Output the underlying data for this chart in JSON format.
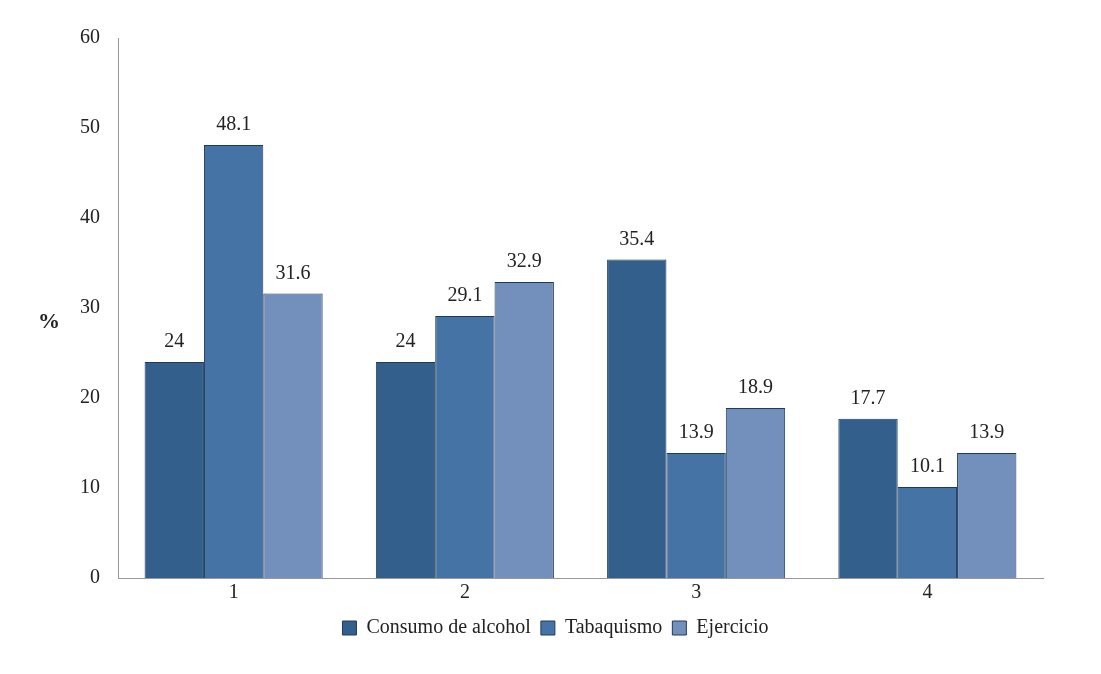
{
  "chart_data": {
    "type": "bar",
    "ylabel": "%",
    "categories": [
      "1",
      "2",
      "3",
      "4"
    ],
    "series": [
      {
        "name": "Consumo de alcohol",
        "color": "#335f8c",
        "values": [
          24,
          24,
          35.4,
          17.7
        ]
      },
      {
        "name": "Tabaquismo",
        "color": "#4573a6",
        "values": [
          48.1,
          29.1,
          13.9,
          10.1
        ]
      },
      {
        "name": "Ejercicio",
        "color": "#7390bd",
        "values": [
          31.6,
          32.9,
          18.9,
          13.9
        ]
      }
    ],
    "ylim": [
      0,
      60
    ],
    "yticks": [
      0,
      10,
      20,
      30,
      40,
      50,
      60
    ],
    "grid": false,
    "legend": "bottom",
    "data_labels": true
  }
}
